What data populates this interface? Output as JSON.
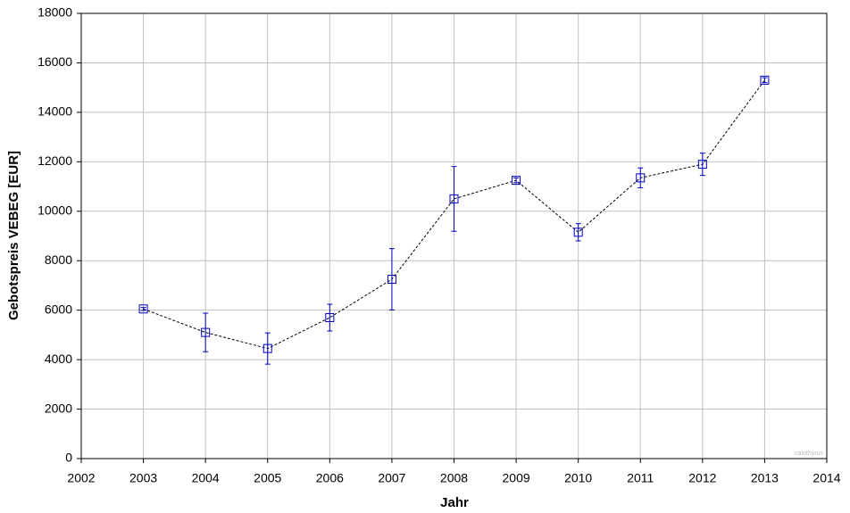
{
  "chart_data": {
    "type": "line",
    "x_label": "Jahr",
    "y_label": "Gebotspreis VEBEG [EUR]",
    "annotation": "calothyrus",
    "x": [
      2003,
      2004,
      2005,
      2006,
      2007,
      2008,
      2009,
      2010,
      2011,
      2012,
      2013
    ],
    "values": [
      6050,
      5100,
      4450,
      5700,
      7250,
      10500,
      11250,
      9150,
      11350,
      11900,
      15300
    ],
    "errors": [
      60,
      780,
      630,
      540,
      1240,
      1310,
      100,
      350,
      400,
      450,
      100
    ],
    "color": "#0000c0",
    "line_color": "#000000",
    "xlim": [
      2002,
      2014
    ],
    "xticks": [
      2002,
      2003,
      2004,
      2005,
      2006,
      2007,
      2008,
      2009,
      2010,
      2011,
      2012,
      2013,
      2014
    ],
    "ylim": [
      0,
      18000
    ],
    "yticks": [
      0,
      2000,
      4000,
      6000,
      8000,
      10000,
      12000,
      14000,
      16000,
      18000
    ],
    "grid": true
  }
}
